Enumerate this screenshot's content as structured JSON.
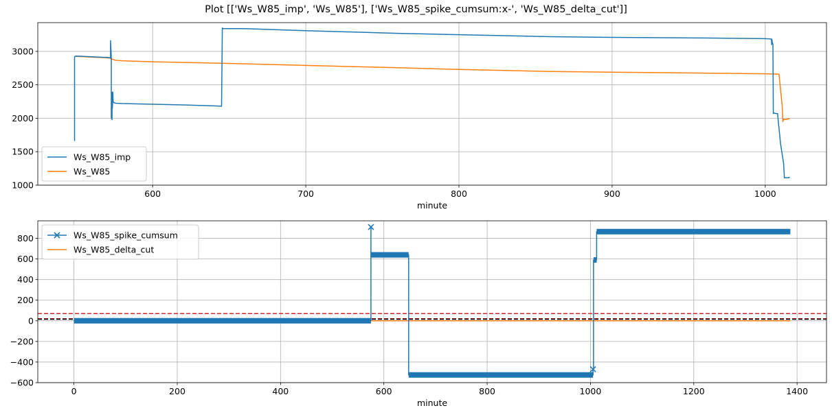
{
  "figure": {
    "suptitle": "Plot [['Ws_W85_imp', 'Ws_W85'], ['Ws_W85_spike_cumsum:x-', 'Ws_W85_delta_cut']]"
  },
  "chart_data": [
    {
      "type": "line",
      "xlabel": "minute",
      "ylabel": "",
      "xlim": [
        525,
        1040
      ],
      "ylim": [
        1000,
        3430
      ],
      "grid": true,
      "legend_position": "lower-left",
      "xticks": [
        600,
        700,
        800,
        900,
        1000
      ],
      "yticks": [
        1000,
        1500,
        2000,
        2500,
        3000
      ],
      "series": [
        {
          "name": "Ws_W85_imp",
          "color": "#1f77b4",
          "x": [
            549,
            549,
            550,
            560,
            570,
            572.5,
            572.5,
            573,
            573,
            573.2,
            573.5,
            573.5,
            573.7,
            574,
            574.2,
            574.5,
            575,
            576,
            580,
            590,
            600,
            620,
            640,
            645,
            645.5,
            646,
            660,
            700,
            760,
            800,
            860,
            900,
            960,
            1000,
            1004,
            1004.2,
            1004.4,
            1004.6,
            1005,
            1005.3,
            1005.6,
            1007,
            1008,
            1010,
            1012,
            1012.5,
            1013,
            1015,
            1016
          ],
          "y": [
            1660,
            2920,
            2930,
            2920,
            2910,
            2905,
            3160,
            2910,
            2000,
            2050,
            1980,
            2390,
            2150,
            2390,
            2250,
            2240,
            2230,
            2225,
            2220,
            2215,
            2210,
            2200,
            2185,
            2180,
            3350,
            3340,
            3340,
            3310,
            3270,
            3250,
            3220,
            3210,
            3200,
            3190,
            3185,
            3100,
            3180,
            3130,
            3110,
            2070,
            2080,
            2070,
            2070,
            1620,
            1320,
            1110,
            1110,
            1110,
            1120
          ]
        },
        {
          "name": "Ws_W85",
          "color": "#ff7f0e",
          "x": [
            549,
            550,
            560,
            570,
            572,
            574,
            576,
            580,
            600,
            650,
            700,
            760,
            800,
            860,
            900,
            960,
            1000,
            1009,
            1010,
            1011,
            1011.5,
            1012,
            1013,
            1015,
            1016
          ],
          "y": [
            2925,
            2925,
            2915,
            2905,
            2900,
            2880,
            2865,
            2860,
            2845,
            2820,
            2790,
            2755,
            2730,
            2700,
            2690,
            2675,
            2665,
            2660,
            2430,
            2200,
            1950,
            1985,
            1980,
            1990,
            1990
          ]
        }
      ]
    },
    {
      "type": "line",
      "xlabel": "minute",
      "ylabel": "",
      "xlim": [
        -70,
        1457
      ],
      "ylim": [
        -600,
        970
      ],
      "grid": true,
      "legend_position": "upper-left",
      "xticks": [
        0,
        200,
        400,
        600,
        800,
        1000,
        1200,
        1400
      ],
      "yticks": [
        -600,
        -400,
        -200,
        0,
        200,
        400,
        600,
        800
      ],
      "hlines": [
        {
          "y": 70,
          "color": "#d62728",
          "style": "dashed"
        },
        {
          "y": 20,
          "color": "#d62728",
          "style": "dashed"
        },
        {
          "y": 15,
          "color": "#000000",
          "style": "dashed"
        }
      ],
      "series": [
        {
          "name": "Ws_W85_spike_cumsum",
          "color": "#1f77b4",
          "marker": "x",
          "segments": [
            {
              "x_start": 0,
              "x_end": 575,
              "y": 0
            },
            {
              "x_start": 575,
              "x_end": 575,
              "y": 910
            },
            {
              "x_start": 575,
              "x_end": 648,
              "y": 640
            },
            {
              "x_start": 648,
              "x_end": 1005,
              "y": -525
            },
            {
              "x_start": 1005,
              "x_end": 1005,
              "y": -470
            },
            {
              "x_start": 1006,
              "x_end": 1012,
              "y": 590
            },
            {
              "x_start": 1012,
              "x_end": 1387,
              "y": 865
            }
          ],
          "x": [
            0,
            575,
            575,
            575,
            648,
            648,
            1005,
            1005,
            1006,
            1006,
            1012,
            1012,
            1387
          ],
          "y": [
            0,
            0,
            910,
            640,
            640,
            -525,
            -525,
            -470,
            -470,
            590,
            590,
            865,
            865
          ]
        },
        {
          "name": "Ws_W85_delta_cut",
          "color": "#ff7f0e",
          "x": [
            0,
            1387
          ],
          "y": [
            0,
            0
          ]
        }
      ]
    }
  ]
}
